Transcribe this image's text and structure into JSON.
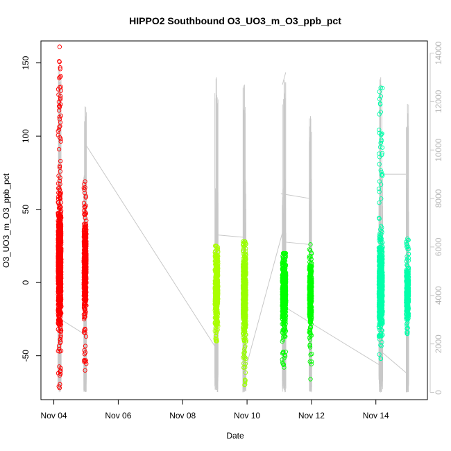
{
  "chart_data": {
    "type": "scatter",
    "title": "HIPPO2 Southbound O3_UO3_m_O3_ppb_pct",
    "xlabel": "Date",
    "ylabel": "O3_UO3_m_O3_ppb_pct",
    "x_ticks": [
      "Nov 04",
      "Nov 06",
      "Nov 08",
      "Nov 10",
      "Nov 12",
      "Nov 14"
    ],
    "x_tick_days": [
      4,
      6,
      8,
      10,
      12,
      14
    ],
    "xlim_days": [
      3.6,
      15.6
    ],
    "y_ticks": [
      -50,
      0,
      50,
      100,
      150
    ],
    "ylim": [
      -80,
      165
    ],
    "y2_ticks": [
      0,
      2000,
      4000,
      6000,
      8000,
      10000,
      12000,
      14000
    ],
    "y2lim": [
      -300,
      14500
    ],
    "y2_color": "#c8c8c8",
    "grid": false,
    "series": [
      {
        "flight": 1,
        "color": "#ff0000",
        "day": 4.18,
        "width": 0.1,
        "core": [
          -20,
          45
        ],
        "min": -72,
        "max": 161,
        "density": 900
      },
      {
        "flight": 2,
        "color": "#ff0000",
        "day": 4.97,
        "width": 0.08,
        "core": [
          -10,
          35
        ],
        "min": -60,
        "max": 69,
        "density": 500
      },
      {
        "flight": 3,
        "color": "#aaff00",
        "day": 9.05,
        "width": 0.1,
        "core": [
          -25,
          15
        ],
        "min": -40,
        "max": 25,
        "density": 450
      },
      {
        "flight": 4,
        "color": "#99ff00",
        "day": 9.92,
        "width": 0.1,
        "core": [
          -30,
          15
        ],
        "min": -70,
        "max": 28,
        "density": 550
      },
      {
        "flight": 5,
        "color": "#00ff00",
        "day": 11.15,
        "width": 0.12,
        "core": [
          -25,
          10
        ],
        "min": -58,
        "max": 20,
        "density": 550
      },
      {
        "flight": 6,
        "color": "#00ff00",
        "day": 11.97,
        "width": 0.08,
        "core": [
          -25,
          10
        ],
        "min": -66,
        "max": 26,
        "density": 400
      },
      {
        "flight": 7,
        "color": "#00ffaa",
        "day": 14.15,
        "width": 0.12,
        "core": [
          -25,
          20
        ],
        "min": -52,
        "max": 133,
        "density": 700
      },
      {
        "flight": 8,
        "color": "#00ffaa",
        "day": 14.98,
        "width": 0.08,
        "core": [
          -20,
          5
        ],
        "min": -35,
        "max": 30,
        "density": 450
      }
    ],
    "altitude_track": {
      "color": "#c8c8c8",
      "legs": [
        {
          "day": 4.18,
          "width": 0.1,
          "max": 13600
        },
        {
          "day": 4.97,
          "width": 0.08,
          "max": 11800
        },
        {
          "day": 9.05,
          "width": 0.1,
          "max": 13000
        },
        {
          "day": 9.92,
          "width": 0.1,
          "max": 12700
        },
        {
          "day": 11.15,
          "width": 0.12,
          "max": 12900
        },
        {
          "day": 11.97,
          "width": 0.08,
          "max": 11400
        },
        {
          "day": 14.15,
          "width": 0.12,
          "max": 13000
        },
        {
          "day": 14.98,
          "width": 0.08,
          "max": 11900
        }
      ],
      "transits": [
        [
          [
            4.23,
            3000
          ],
          [
            4.95,
            2400
          ]
        ],
        [
          [
            5.0,
            10200
          ],
          [
            9.05,
            1800
          ]
        ],
        [
          [
            9.05,
            6500
          ],
          [
            9.9,
            6400
          ]
        ],
        [
          [
            9.9,
            700
          ],
          [
            11.1,
            6600
          ]
        ],
        [
          [
            11.1,
            12700
          ],
          [
            11.2,
            13200
          ]
        ],
        [
          [
            11.2,
            6200
          ],
          [
            11.95,
            6100
          ]
        ],
        [
          [
            11.05,
            8200
          ],
          [
            11.95,
            8000
          ]
        ],
        [
          [
            11.2,
            3500
          ],
          [
            14.15,
            1100
          ]
        ],
        [
          [
            14.15,
            9000
          ],
          [
            14.95,
            9000
          ]
        ],
        [
          [
            14.15,
            1700
          ],
          [
            14.95,
            800
          ]
        ]
      ]
    }
  }
}
